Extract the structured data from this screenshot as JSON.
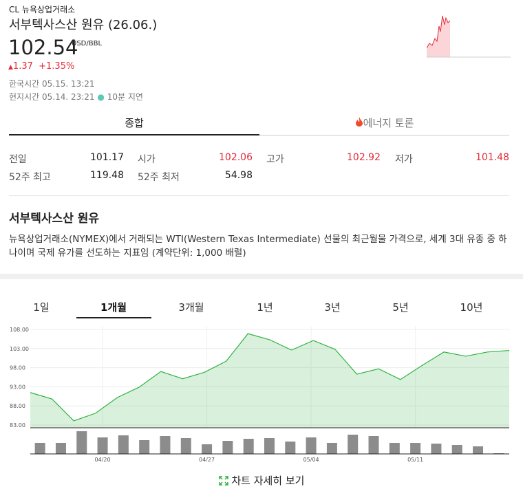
{
  "header": {
    "code": "CL",
    "exchange": "뉴욕상업거래소",
    "name": "서부텍사스산 원유",
    "contract": "(26.06.)",
    "price": "102.54",
    "unit": "USD/BBL",
    "change": "1.37",
    "change_percent": "+1.35%",
    "kst_label": "한국시간",
    "kst_time": "05.15. 13:21",
    "local_label": "현지시간",
    "local_time": "05.14. 23:21",
    "delay": "10분 지연"
  },
  "tabs": [
    "종합",
    "에너지 토론"
  ],
  "stats": [
    {
      "label": "전일",
      "value": "101.17"
    },
    {
      "label": "시가",
      "value": "102.06"
    },
    {
      "label": "고가",
      "value": "102.92"
    },
    {
      "label": "저가",
      "value": "101.48"
    },
    {
      "label": "52주 최고",
      "value": "119.48"
    },
    {
      "label": "52주 최저",
      "value": "54.98"
    }
  ],
  "description": {
    "title": "서부텍사스산 원유",
    "text": "뉴욕상업거래소(NYMEX)에서 거래되는 WTI(Western Texas Intermediate) 선물의 최근월물 가격으로, 세계 3대 유종 중 하나이며 국제 유가를 선도하는 지표임 (계약단위: 1,000 배럴)"
  },
  "periods": [
    "1일",
    "1개월",
    "3개월",
    "1년",
    "3년",
    "5년",
    "10년"
  ],
  "chart_data": {
    "type": "area",
    "color": "#2db33f",
    "categories": [
      null,
      null,
      null,
      "04/20",
      null,
      null,
      null,
      null,
      "04/27",
      null,
      null,
      null,
      null,
      "05/04",
      null,
      null,
      null,
      null,
      "05/11",
      null,
      null,
      null,
      null
    ],
    "values": [
      91.5,
      89.8,
      84.1,
      86.1,
      90.2,
      92.9,
      97.0,
      95.1,
      96.8,
      99.7,
      106.9,
      105.3,
      102.6,
      105.1,
      102.8,
      96.3,
      97.7,
      94.9,
      98.6,
      102.1,
      101.0,
      102.1,
      102.5
    ],
    "volume": [
      16,
      16,
      33,
      24,
      27,
      20,
      26,
      23,
      14,
      19,
      22,
      23,
      18,
      24,
      16,
      28,
      26,
      16,
      16,
      15,
      13,
      11,
      1
    ],
    "ylim": [
      83,
      108
    ],
    "yticks": [
      {
        "value": 83,
        "label": "83.00"
      },
      {
        "value": 88,
        "label": "88.00"
      },
      {
        "value": 93,
        "label": "93.00"
      },
      {
        "value": 98,
        "label": "98.00"
      },
      {
        "value": 103,
        "label": "103.00"
      },
      {
        "value": 108,
        "label": "108.00"
      }
    ],
    "grid": true
  },
  "detail_link": "차트 자세히 보기"
}
